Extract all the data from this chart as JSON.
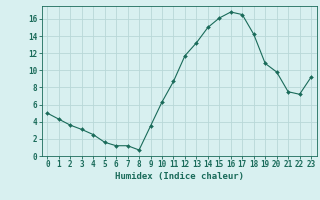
{
  "x": [
    0,
    1,
    2,
    3,
    4,
    5,
    6,
    7,
    8,
    9,
    10,
    11,
    12,
    13,
    14,
    15,
    16,
    17,
    18,
    19,
    20,
    21,
    22,
    23
  ],
  "y": [
    5.0,
    4.3,
    3.6,
    3.1,
    2.5,
    1.6,
    1.2,
    1.2,
    0.7,
    3.5,
    6.3,
    8.7,
    11.7,
    13.2,
    15.0,
    16.1,
    16.8,
    16.5,
    14.2,
    10.8,
    9.8,
    7.5,
    7.2,
    9.2
  ],
  "line_color": "#1a6b5a",
  "marker": "D",
  "marker_size": 2,
  "bg_color": "#d8f0f0",
  "grid_color": "#b8d8d8",
  "xlabel": "Humidex (Indice chaleur)",
  "xlim": [
    -0.5,
    23.5
  ],
  "ylim": [
    0,
    17.5
  ],
  "xtick_labels": [
    "0",
    "1",
    "2",
    "3",
    "4",
    "5",
    "6",
    "7",
    "8",
    "9",
    "10",
    "11",
    "12",
    "13",
    "14",
    "15",
    "16",
    "17",
    "18",
    "19",
    "20",
    "21",
    "22",
    "23"
  ],
  "ytick_vals": [
    0,
    2,
    4,
    6,
    8,
    10,
    12,
    14,
    16
  ],
  "tick_color": "#1a6b5a",
  "axis_color": "#1a6b5a",
  "label_fontsize": 6.5,
  "tick_fontsize": 5.5
}
